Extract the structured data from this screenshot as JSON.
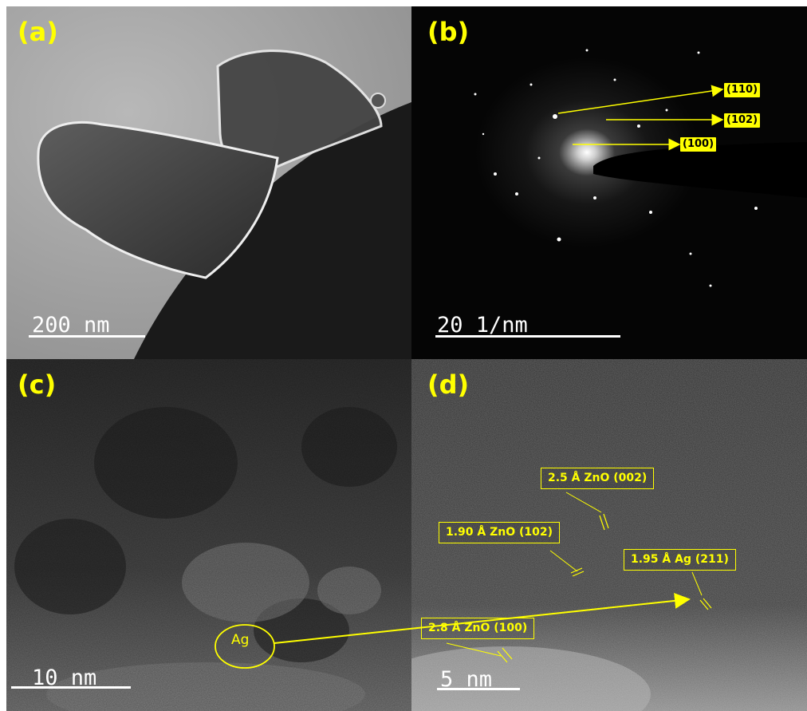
{
  "panels": {
    "a": {
      "label": "(a)",
      "scale": "200 nm"
    },
    "b": {
      "label": "(b)",
      "scale": "20 1/nm",
      "rings": [
        "(110)",
        "(102)",
        "(100)"
      ]
    },
    "c": {
      "label": "(c)",
      "scale": "10 nm",
      "annotation": "Ag"
    },
    "d": {
      "label": "(d)",
      "scale": "5 nm",
      "spacings": [
        "2.5 Å ZnO (002)",
        "1.90 Å ZnO (102)",
        "1.95 Å Ag (211)",
        "2.8 Å ZnO (100)"
      ]
    }
  },
  "colors": {
    "annotation": "#ffff00",
    "scale": "#ffffff"
  }
}
